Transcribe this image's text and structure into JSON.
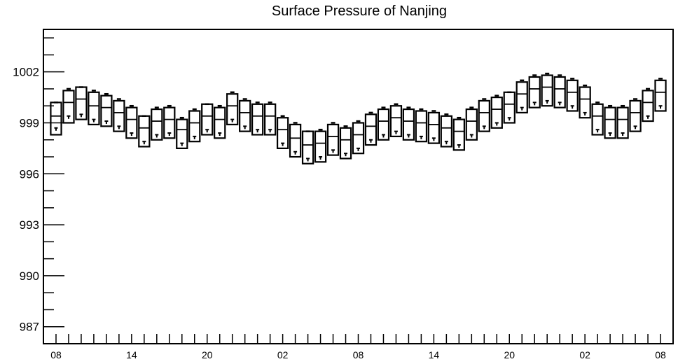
{
  "chart_data": {
    "type": "box",
    "title": "Surface Pressure of Nanjing",
    "xlabel": "",
    "ylabel": "",
    "ylim": [
      986,
      1004.5
    ],
    "yticks": [
      987,
      990,
      993,
      996,
      999,
      1002
    ],
    "x_tick_labels": [
      "08",
      "14",
      "20",
      "02",
      "08",
      "14",
      "20",
      "02",
      "08"
    ],
    "x_tick_positions": [
      0,
      6,
      12,
      18,
      24,
      30,
      36,
      42,
      48
    ],
    "x_range": [
      -1,
      49
    ],
    "colors": {
      "stroke": "#000000",
      "background": "#ffffff"
    },
    "series": [
      {
        "box_top": [
          1000.2,
          1000.9,
          1001.1,
          1000.8,
          1000.6,
          1000.3,
          999.9,
          999.4,
          999.8,
          999.9,
          999.2,
          999.7,
          1000.1,
          999.9,
          1000.7,
          1000.3,
          1000.1,
          1000.1,
          999.3,
          998.9,
          998.5,
          998.5,
          998.9,
          998.7,
          999.0,
          999.5,
          999.8,
          1000.0,
          999.8,
          999.7,
          999.6,
          999.4,
          999.2,
          999.8,
          1000.3,
          1000.5,
          1000.8,
          1001.4,
          1001.7,
          1001.8,
          1001.7,
          1001.5,
          1001.1,
          1000.1,
          999.9,
          999.9,
          1000.3,
          1000.9,
          1001.5
        ],
        "median": [
          999.4,
          1000.2,
          1000.4,
          1000.0,
          999.9,
          999.6,
          999.2,
          998.7,
          999.1,
          999.2,
          998.6,
          999.0,
          999.4,
          999.2,
          1000.0,
          999.6,
          999.4,
          999.4,
          998.6,
          998.1,
          997.7,
          997.8,
          998.2,
          998.0,
          998.3,
          998.8,
          999.1,
          999.3,
          999.1,
          999.0,
          998.9,
          998.7,
          998.5,
          999.1,
          999.6,
          999.8,
          1000.1,
          1000.7,
          1001.0,
          1001.1,
          1001.0,
          1000.8,
          1000.4,
          999.4,
          999.2,
          999.2,
          999.6,
          1000.2,
          1000.8
        ],
        "box_bottom": [
          998.3,
          999.0,
          999.2,
          998.9,
          998.8,
          998.5,
          998.1,
          997.6,
          998.0,
          998.1,
          997.5,
          997.9,
          998.3,
          998.1,
          998.9,
          998.5,
          998.3,
          998.3,
          997.5,
          997.0,
          996.6,
          996.7,
          997.1,
          996.9,
          997.2,
          997.7,
          998.0,
          998.2,
          998.0,
          997.9,
          997.8,
          997.6,
          997.4,
          998.0,
          998.5,
          998.7,
          999.0,
          999.6,
          999.9,
          1000.0,
          999.9,
          999.7,
          999.3,
          998.3,
          998.1,
          998.1,
          998.5,
          999.1,
          999.7
        ],
        "upper_mark": [
          1000.2,
          1001.0,
          1001.1,
          1000.9,
          1000.7,
          1000.4,
          1000.0,
          999.4,
          999.9,
          1000.0,
          999.3,
          999.8,
          1000.1,
          1000.0,
          1000.8,
          1000.4,
          1000.2,
          1000.2,
          999.4,
          999.0,
          998.5,
          998.6,
          999.0,
          998.8,
          999.1,
          999.6,
          999.9,
          1000.1,
          999.9,
          999.8,
          999.7,
          999.5,
          999.3,
          999.9,
          1000.4,
          1000.6,
          1000.8,
          1001.5,
          1001.8,
          1001.9,
          1001.8,
          1001.6,
          1001.2,
          1000.2,
          1000.0,
          1000.0,
          1000.4,
          1001.0,
          1001.6
        ],
        "lower_mark": [
          998.7,
          999.4,
          999.5,
          999.2,
          999.1,
          998.8,
          998.4,
          997.9,
          998.3,
          998.4,
          997.8,
          998.2,
          998.6,
          998.4,
          999.2,
          998.8,
          998.6,
          998.6,
          997.8,
          997.3,
          996.9,
          997.0,
          997.4,
          997.2,
          997.5,
          998.0,
          998.3,
          998.5,
          998.3,
          998.2,
          998.1,
          997.9,
          997.7,
          998.3,
          998.8,
          999.0,
          999.3,
          999.9,
          1000.2,
          1000.3,
          1000.2,
          1000.0,
          999.6,
          998.6,
          998.4,
          998.4,
          998.8,
          999.4,
          1000.0
        ]
      }
    ]
  }
}
